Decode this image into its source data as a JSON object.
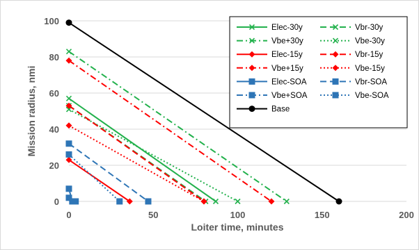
{
  "chart_data": {
    "type": "line",
    "title": "",
    "xlabel": "Loiter time, minutes",
    "ylabel": "Mission radius, nmi",
    "xlim": [
      0,
      200
    ],
    "ylim": [
      0,
      100
    ],
    "xticks": [
      "0",
      "50",
      "100",
      "150",
      "200"
    ],
    "yticks": [
      "0",
      "20",
      "40",
      "60",
      "80",
      "100"
    ],
    "grid": "horizontal",
    "legend_position": "top-right",
    "series": [
      {
        "name": "Elec-30y",
        "color": "#22B14C",
        "dash": "solid",
        "marker": "x",
        "points": [
          [
            0,
            57
          ],
          [
            87,
            0
          ]
        ]
      },
      {
        "name": "Vbr-30y",
        "color": "#22B14C",
        "dash": "dash",
        "marker": "x",
        "points": [
          [
            0,
            53
          ],
          [
            81,
            0
          ]
        ]
      },
      {
        "name": "Vbe+30y",
        "color": "#22B14C",
        "dash": "dashdot",
        "marker": "x",
        "points": [
          [
            0,
            83
          ],
          [
            129,
            0
          ]
        ]
      },
      {
        "name": "Vbe-30y",
        "color": "#22B14C",
        "dash": "dot",
        "marker": "x",
        "points": [
          [
            0,
            51
          ],
          [
            100,
            0
          ]
        ]
      },
      {
        "name": "Elec-15y",
        "color": "#FF0000",
        "dash": "solid",
        "marker": "diamond",
        "points": [
          [
            0,
            23
          ],
          [
            36,
            0
          ]
        ]
      },
      {
        "name": "Vbr-15y",
        "color": "#FF0000",
        "dash": "dash",
        "marker": "diamond",
        "points": [
          [
            0,
            53
          ],
          [
            80,
            0
          ]
        ]
      },
      {
        "name": "Vbe+15y",
        "color": "#FF0000",
        "dash": "dashdot",
        "marker": "diamond",
        "points": [
          [
            0,
            78
          ],
          [
            120,
            0
          ]
        ]
      },
      {
        "name": "Vbe-15y",
        "color": "#FF0000",
        "dash": "dot",
        "marker": "diamond",
        "points": [
          [
            0,
            42
          ],
          [
            80,
            0
          ]
        ]
      },
      {
        "name": "Elec-SOA",
        "color": "#2E75B6",
        "dash": "solid",
        "marker": "square",
        "points": [
          [
            0,
            2
          ],
          [
            4,
            0
          ]
        ]
      },
      {
        "name": "Vbr-SOA",
        "color": "#2E75B6",
        "dash": "dash",
        "marker": "square",
        "points": [
          [
            0,
            32
          ],
          [
            47,
            0
          ]
        ]
      },
      {
        "name": "Vbe+SOA",
        "color": "#2E75B6",
        "dash": "dashdot",
        "marker": "square",
        "points": [
          [
            0,
            7
          ],
          [
            2,
            0
          ]
        ]
      },
      {
        "name": "Vbe-SOA",
        "color": "#2E75B6",
        "dash": "dot",
        "marker": "square",
        "points": [
          [
            0,
            26
          ],
          [
            30,
            0
          ]
        ]
      },
      {
        "name": "Base",
        "color": "#000000",
        "dash": "solid",
        "marker": "circle",
        "points": [
          [
            0,
            99
          ],
          [
            160,
            0
          ]
        ]
      }
    ]
  }
}
